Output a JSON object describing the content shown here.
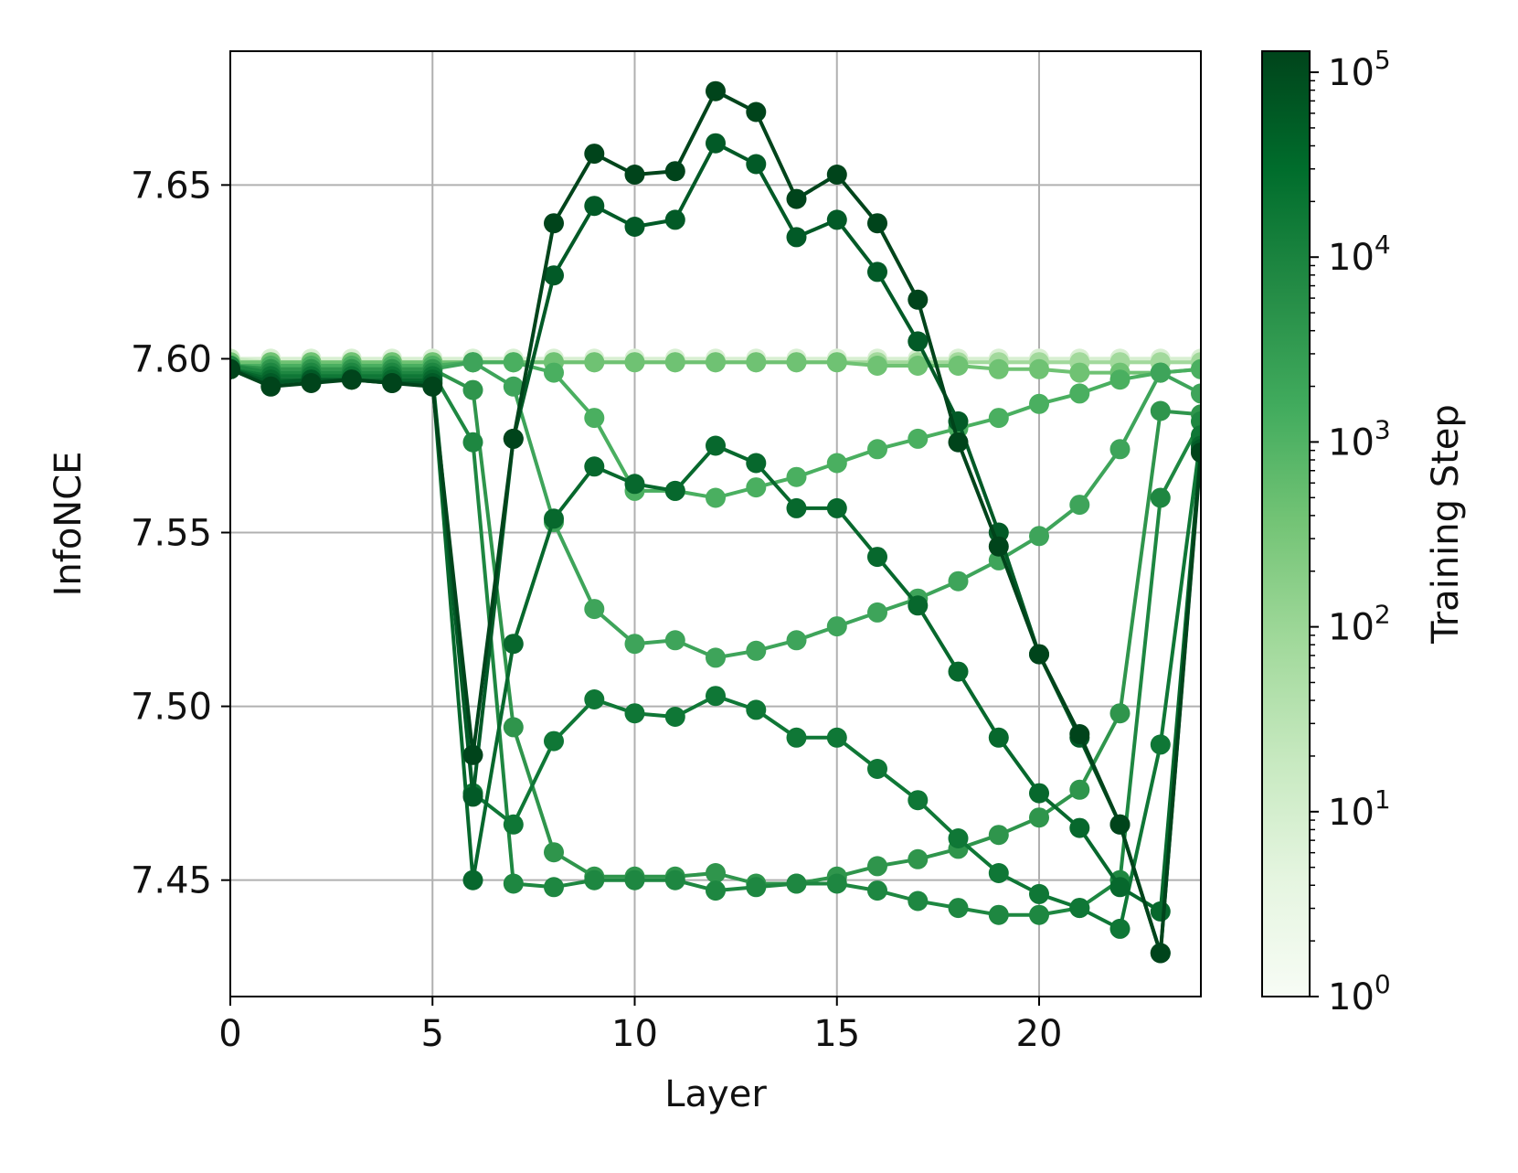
{
  "chart_data": {
    "type": "line",
    "title": "",
    "xlabel": "Layer",
    "ylabel": "InfoNCE",
    "xlim": [
      0,
      24
    ],
    "ylim": [
      7.4165,
      7.6885
    ],
    "xticks": [
      0,
      5,
      10,
      15,
      20
    ],
    "xtick_labels": [
      "0",
      "5",
      "10",
      "15",
      "20"
    ],
    "yticks": [
      7.45,
      7.5,
      7.55,
      7.6,
      7.65
    ],
    "ytick_labels": [
      "7.45",
      "7.50",
      "7.55",
      "7.60",
      "7.65"
    ],
    "grid": true,
    "legend": "none",
    "colorbar": {
      "label": "Training Step",
      "scale": "log",
      "min": 1,
      "max": 130000,
      "tick_bases": [
        "10",
        "10",
        "10",
        "10",
        "10",
        "10"
      ],
      "tick_exponents": [
        "0",
        "1",
        "2",
        "3",
        "4",
        "5"
      ],
      "colors": [
        "#f7fcf5",
        "#e5f5e0",
        "#c7e9c0",
        "#a1d99b",
        "#74c476",
        "#41ab5d",
        "#238b45",
        "#006d2c",
        "#00441b"
      ]
    },
    "series": [
      {
        "step": 1,
        "color": "#f1f9ee",
        "x": [
          0,
          1,
          2,
          3,
          4,
          5,
          6,
          7,
          8,
          9,
          10,
          11,
          12,
          13,
          14,
          15,
          16,
          17,
          18,
          19,
          20,
          21,
          22,
          23,
          24
        ],
        "y": [
          7.6,
          7.6,
          7.6,
          7.6,
          7.6,
          7.6,
          7.6,
          7.6,
          7.6,
          7.6,
          7.6,
          7.6,
          7.6,
          7.6,
          7.6,
          7.6,
          7.6,
          7.6,
          7.6,
          7.6,
          7.6,
          7.6,
          7.6,
          7.6,
          7.6
        ]
      },
      {
        "step": 3,
        "color": "#e6f5e1",
        "x": [
          0,
          1,
          2,
          3,
          4,
          5,
          6,
          7,
          8,
          9,
          10,
          11,
          12,
          13,
          14,
          15,
          16,
          17,
          18,
          19,
          20,
          21,
          22,
          23,
          24
        ],
        "y": [
          7.6,
          7.6,
          7.6,
          7.6,
          7.6,
          7.6,
          7.6,
          7.6,
          7.6,
          7.6,
          7.6,
          7.6,
          7.6,
          7.6,
          7.6,
          7.6,
          7.6,
          7.6,
          7.6,
          7.6,
          7.6,
          7.6,
          7.6,
          7.6,
          7.6
        ]
      },
      {
        "step": 10,
        "color": "#d8efd2",
        "x": [
          0,
          1,
          2,
          3,
          4,
          5,
          6,
          7,
          8,
          9,
          10,
          11,
          12,
          13,
          14,
          15,
          16,
          17,
          18,
          19,
          20,
          21,
          22,
          23,
          24
        ],
        "y": [
          7.6,
          7.6,
          7.6,
          7.6,
          7.6,
          7.6,
          7.6,
          7.6,
          7.6,
          7.6,
          7.6,
          7.6,
          7.6,
          7.6,
          7.6,
          7.6,
          7.6,
          7.6,
          7.6,
          7.6,
          7.6,
          7.6,
          7.6,
          7.6,
          7.6
        ]
      },
      {
        "step": 30,
        "color": "#c6e9bf",
        "x": [
          0,
          1,
          2,
          3,
          4,
          5,
          6,
          7,
          8,
          9,
          10,
          11,
          12,
          13,
          14,
          15,
          16,
          17,
          18,
          19,
          20,
          21,
          22,
          23,
          24
        ],
        "y": [
          7.6,
          7.599,
          7.599,
          7.599,
          7.599,
          7.599,
          7.599,
          7.599,
          7.599,
          7.599,
          7.599,
          7.599,
          7.599,
          7.599,
          7.599,
          7.599,
          7.599,
          7.599,
          7.599,
          7.599,
          7.599,
          7.599,
          7.599,
          7.599,
          7.599
        ]
      },
      {
        "step": 100,
        "color": "#a2d99c",
        "x": [
          0,
          1,
          2,
          3,
          4,
          5,
          6,
          7,
          8,
          9,
          10,
          11,
          12,
          13,
          14,
          15,
          16,
          17,
          18,
          19,
          20,
          21,
          22,
          23,
          24
        ],
        "y": [
          7.599,
          7.599,
          7.599,
          7.599,
          7.599,
          7.599,
          7.599,
          7.599,
          7.599,
          7.599,
          7.599,
          7.599,
          7.599,
          7.599,
          7.599,
          7.599,
          7.599,
          7.599,
          7.599,
          7.599,
          7.599,
          7.599,
          7.599,
          7.599,
          7.599
        ]
      },
      {
        "step": 300,
        "color": "#6fc273",
        "x": [
          0,
          1,
          2,
          3,
          4,
          5,
          6,
          7,
          8,
          9,
          10,
          11,
          12,
          13,
          14,
          15,
          16,
          17,
          18,
          19,
          20,
          21,
          22,
          23,
          24
        ],
        "y": [
          7.599,
          7.599,
          7.599,
          7.599,
          7.599,
          7.599,
          7.599,
          7.599,
          7.599,
          7.599,
          7.599,
          7.599,
          7.599,
          7.599,
          7.599,
          7.599,
          7.598,
          7.598,
          7.598,
          7.597,
          7.597,
          7.596,
          7.596,
          7.596,
          7.597
        ]
      },
      {
        "step": 1000,
        "color": "#4aaf60",
        "x": [
          0,
          1,
          2,
          3,
          4,
          5,
          6,
          7,
          8,
          9,
          10,
          11,
          12,
          13,
          14,
          15,
          16,
          17,
          18,
          19,
          20,
          21,
          22,
          23,
          24
        ],
        "y": [
          7.598,
          7.598,
          7.598,
          7.598,
          7.598,
          7.598,
          7.599,
          7.599,
          7.596,
          7.583,
          7.562,
          7.562,
          7.56,
          7.563,
          7.566,
          7.57,
          7.574,
          7.577,
          7.58,
          7.583,
          7.587,
          7.59,
          7.594,
          7.596,
          7.597
        ]
      },
      {
        "step": 2000,
        "color": "#3ea45a",
        "x": [
          0,
          1,
          2,
          3,
          4,
          5,
          6,
          7,
          8,
          9,
          10,
          11,
          12,
          13,
          14,
          15,
          16,
          17,
          18,
          19,
          20,
          21,
          22,
          23,
          24
        ],
        "y": [
          7.598,
          7.597,
          7.597,
          7.597,
          7.597,
          7.597,
          7.599,
          7.592,
          7.553,
          7.528,
          7.518,
          7.519,
          7.514,
          7.516,
          7.519,
          7.523,
          7.527,
          7.531,
          7.536,
          7.542,
          7.549,
          7.558,
          7.574,
          7.596,
          7.59
        ]
      },
      {
        "step": 4000,
        "color": "#2f954c",
        "x": [
          0,
          1,
          2,
          3,
          4,
          5,
          6,
          7,
          8,
          9,
          10,
          11,
          12,
          13,
          14,
          15,
          16,
          17,
          18,
          19,
          20,
          21,
          22,
          23,
          24
        ],
        "y": [
          7.598,
          7.597,
          7.597,
          7.597,
          7.597,
          7.597,
          7.591,
          7.494,
          7.458,
          7.451,
          7.451,
          7.451,
          7.452,
          7.449,
          7.449,
          7.451,
          7.454,
          7.456,
          7.459,
          7.463,
          7.468,
          7.476,
          7.498,
          7.585,
          7.584
        ]
      },
      {
        "step": 8000,
        "color": "#1e8741",
        "x": [
          0,
          1,
          2,
          3,
          4,
          5,
          6,
          7,
          8,
          9,
          10,
          11,
          12,
          13,
          14,
          15,
          16,
          17,
          18,
          19,
          20,
          21,
          22,
          23,
          24
        ],
        "y": [
          7.598,
          7.596,
          7.596,
          7.596,
          7.596,
          7.596,
          7.576,
          7.449,
          7.448,
          7.45,
          7.45,
          7.45,
          7.447,
          7.448,
          7.449,
          7.449,
          7.447,
          7.444,
          7.442,
          7.44,
          7.44,
          7.442,
          7.45,
          7.56,
          7.582
        ]
      },
      {
        "step": 16000,
        "color": "#0f7736",
        "x": [
          0,
          1,
          2,
          3,
          4,
          5,
          6,
          7,
          8,
          9,
          10,
          11,
          12,
          13,
          14,
          15,
          16,
          17,
          18,
          19,
          20,
          21,
          22,
          23,
          24
        ],
        "y": [
          7.597,
          7.595,
          7.595,
          7.595,
          7.595,
          7.595,
          7.475,
          7.466,
          7.49,
          7.502,
          7.498,
          7.497,
          7.503,
          7.499,
          7.491,
          7.491,
          7.482,
          7.473,
          7.462,
          7.452,
          7.446,
          7.442,
          7.436,
          7.489,
          7.578
        ]
      },
      {
        "step": 32000,
        "color": "#07682d",
        "x": [
          0,
          1,
          2,
          3,
          4,
          5,
          6,
          7,
          8,
          9,
          10,
          11,
          12,
          13,
          14,
          15,
          16,
          17,
          18,
          19,
          20,
          21,
          22,
          23,
          24
        ],
        "y": [
          7.597,
          7.594,
          7.594,
          7.594,
          7.594,
          7.594,
          7.45,
          7.518,
          7.554,
          7.569,
          7.564,
          7.562,
          7.575,
          7.57,
          7.557,
          7.557,
          7.543,
          7.529,
          7.51,
          7.491,
          7.475,
          7.465,
          7.448,
          7.441,
          7.575
        ]
      },
      {
        "step": 64000,
        "color": "#025a27",
        "x": [
          0,
          1,
          2,
          3,
          4,
          5,
          6,
          7,
          8,
          9,
          10,
          11,
          12,
          13,
          14,
          15,
          16,
          17,
          18,
          19,
          20,
          21,
          22,
          23,
          24
        ],
        "y": [
          7.597,
          7.593,
          7.594,
          7.594,
          7.593,
          7.593,
          7.474,
          7.577,
          7.624,
          7.644,
          7.638,
          7.64,
          7.662,
          7.656,
          7.635,
          7.64,
          7.625,
          7.605,
          7.582,
          7.55,
          7.515,
          7.491,
          7.466,
          7.429,
          7.574
        ]
      },
      {
        "step": 128000,
        "color": "#00441b",
        "x": [
          0,
          1,
          2,
          3,
          4,
          5,
          6,
          7,
          8,
          9,
          10,
          11,
          12,
          13,
          14,
          15,
          16,
          17,
          18,
          19,
          20,
          21,
          22,
          23,
          24
        ],
        "y": [
          7.597,
          7.592,
          7.593,
          7.594,
          7.593,
          7.592,
          7.486,
          7.577,
          7.639,
          7.659,
          7.653,
          7.654,
          7.677,
          7.671,
          7.646,
          7.653,
          7.639,
          7.617,
          7.576,
          7.546,
          7.515,
          7.492,
          7.466,
          7.429,
          7.573
        ]
      }
    ]
  }
}
